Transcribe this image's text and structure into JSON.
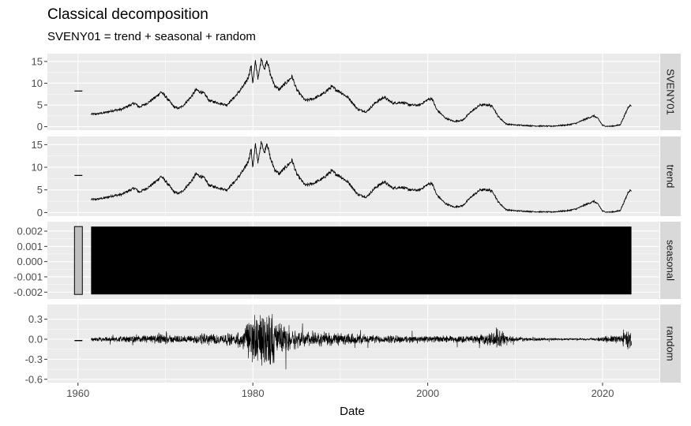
{
  "chart_data": {
    "type": "line",
    "title": "Classical decomposition",
    "subtitle": "SVENY01 = trend + seasonal + random",
    "xlabel": "Date",
    "xlim": [
      1956.5,
      2026.5
    ],
    "x_ticks": [
      1960,
      1980,
      2000,
      2020
    ],
    "x_tick_labels": [
      "1960",
      "1980",
      "2000",
      "2020"
    ],
    "grid": true,
    "panels": [
      {
        "name": "SVENY01",
        "kind": "line",
        "ylim": [
          -0.8,
          16.8
        ],
        "y_ticks": [
          0,
          5,
          10,
          15
        ],
        "y_tick_labels": [
          "0",
          "5",
          "10",
          "15"
        ],
        "isolated_segment": {
          "x": [
            1959.6,
            1960.5
          ],
          "y": 8.2
        },
        "x": [
          1961.5,
          1962,
          1963,
          1964,
          1965,
          1966,
          1966.5,
          1967,
          1968,
          1969,
          1969.5,
          1970,
          1971,
          1971.5,
          1972,
          1973,
          1973.5,
          1974,
          1974.5,
          1975,
          1976,
          1977,
          1978,
          1979,
          1979.5,
          1979.8,
          1980,
          1980.3,
          1980.6,
          1981,
          1981.3,
          1981.6,
          1982,
          1982.5,
          1983,
          1984,
          1984.5,
          1985,
          1986,
          1987,
          1988,
          1989,
          1989.5,
          1990,
          1991,
          1992,
          1993,
          1994,
          1995,
          1996,
          1997,
          1998,
          1999,
          2000,
          2000.5,
          2001,
          2002,
          2003,
          2004,
          2005,
          2006,
          2007,
          2007.5,
          2008,
          2008.5,
          2009,
          2010,
          2012,
          2014,
          2016,
          2017,
          2018,
          2019,
          2019.5,
          2020,
          2020.5,
          2021,
          2022,
          2022.5,
          2023,
          2023.3
        ],
        "y": [
          2.9,
          2.9,
          3.2,
          3.7,
          4.0,
          5.0,
          5.4,
          4.5,
          5.5,
          7.0,
          8.0,
          7.0,
          4.5,
          4.2,
          4.8,
          7.0,
          8.5,
          8.0,
          7.5,
          6.0,
          5.5,
          5.0,
          7.0,
          9.5,
          11.5,
          14.0,
          10.0,
          15.0,
          11.0,
          16.0,
          13.0,
          15.5,
          12.0,
          9.5,
          8.5,
          10.5,
          11.5,
          8.5,
          6.0,
          6.5,
          7.5,
          9.2,
          8.5,
          8.0,
          6.5,
          4.0,
          3.4,
          5.5,
          6.8,
          5.4,
          5.6,
          5.0,
          4.9,
          6.2,
          6.5,
          4.0,
          2.0,
          1.2,
          1.5,
          3.5,
          5.0,
          5.0,
          4.5,
          2.5,
          1.5,
          0.6,
          0.4,
          0.2,
          0.1,
          0.4,
          0.8,
          1.7,
          2.5,
          1.8,
          0.3,
          0.1,
          0.1,
          0.4,
          2.5,
          4.8,
          4.9
        ]
      },
      {
        "name": "trend",
        "kind": "line",
        "ylim": [
          -0.8,
          16.8
        ],
        "y_ticks": [
          0,
          5,
          10,
          15
        ],
        "y_tick_labels": [
          "0",
          "5",
          "10",
          "15"
        ],
        "isolated_segment": {
          "x": [
            1959.6,
            1960.5
          ],
          "y": 8.2
        },
        "same_series_as": "SVENY01"
      },
      {
        "name": "seasonal",
        "kind": "band",
        "ylim": [
          -0.00245,
          0.00262
        ],
        "y_ticks": [
          -0.002,
          -0.001,
          0.0,
          0.001,
          0.002
        ],
        "y_tick_labels": [
          "-0.002",
          "-0.001",
          "0.000",
          "0.001",
          "0.002"
        ],
        "band_min": -0.00215,
        "band_max": 0.0023,
        "isolated_box": {
          "x": [
            1959.6,
            1960.5
          ],
          "fill": "#c0c0c0"
        },
        "band_x": [
          1961.5,
          2023.3
        ]
      },
      {
        "name": "random",
        "kind": "noise",
        "ylim": [
          -0.65,
          0.52
        ],
        "y_ticks": [
          0.3,
          0.0,
          -0.3,
          -0.6
        ],
        "y_tick_labels": [
          "0.3",
          "0.0",
          "-0.3",
          "-0.6"
        ],
        "isolated_segment": {
          "x": [
            1959.6,
            1960.5
          ],
          "y": -0.02
        },
        "envelope_x": [
          1961.5,
          1965,
          1970,
          1972,
          1975,
          1978,
          1979,
          1980,
          1981,
          1982,
          1983,
          1985,
          1990,
          1995,
          2000,
          2005,
          2007,
          2008,
          2009,
          2010,
          2015,
          2019,
          2020,
          2022,
          2023.3
        ],
        "envelope_amp": [
          0.03,
          0.05,
          0.08,
          0.06,
          0.1,
          0.1,
          0.2,
          0.45,
          0.5,
          0.5,
          0.3,
          0.15,
          0.1,
          0.07,
          0.06,
          0.06,
          0.1,
          0.15,
          0.1,
          0.04,
          0.02,
          0.02,
          0.05,
          0.08,
          0.2
        ]
      }
    ],
    "colors": {
      "panel_background": "#ebebeb",
      "grid_major": "#ffffff",
      "strip_background": "#d9d9d9",
      "line": "#000000",
      "tick_text": "#4d4d4d"
    }
  }
}
